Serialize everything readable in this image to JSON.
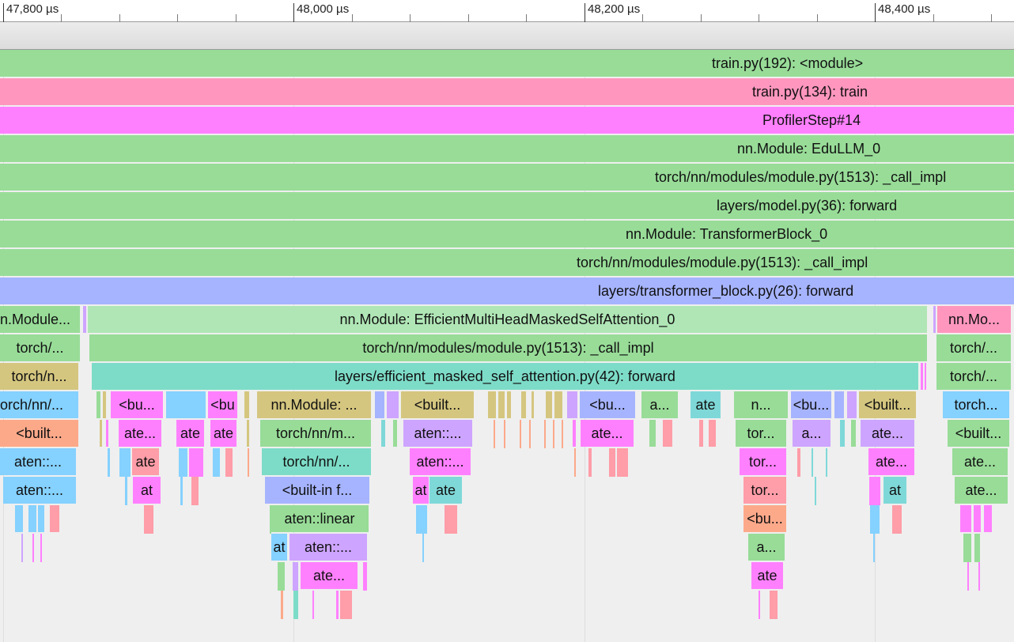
{
  "ruler": {
    "ticks": [
      {
        "label": "47,800 µs"
      },
      {
        "label": "48,000 µs"
      },
      {
        "label": "48,200 µs"
      },
      {
        "label": "48,400 µs"
      }
    ]
  },
  "rows": {
    "module": "train.py(192): <module>",
    "train": "train.py(134): train",
    "profiler_step": "ProfilerStep#14",
    "edullm": "nn.Module: EduLLM_0",
    "call_impl_1": "torch/nn/modules/module.py(1513): _call_impl",
    "model_forward": "layers/model.py(36): forward",
    "transformer_block": "nn.Module: TransformerBlock_0",
    "call_impl_2": "torch/nn/modules/module.py(1513): _call_impl",
    "transformer_forward": "layers/transformer_block.py(26): forward"
  },
  "attention": {
    "module": "nn.Module: EfficientMultiHeadMaskedSelfAttention_0",
    "call_impl": "torch/nn/modules/module.py(1513): _call_impl",
    "forward": "layers/efficient_masked_self_attention.py(42): forward"
  },
  "left_stack": [
    "n.Module...",
    "torch/...",
    "torch/n...",
    "orch/nn/...",
    "<built...",
    "aten::...",
    "aten::..."
  ],
  "right_stack": [
    "nn.Mo...",
    "torch/...",
    "torch/...",
    "torch...",
    "<built...",
    "ate...",
    "ate..."
  ],
  "labels": {
    "bu": "<bu...",
    "bu_short": "<bu",
    "ate_dots": "ate...",
    "ate": "ate",
    "at": "at",
    "nn_module": "nn.Module: ...",
    "torch_nn_m": "torch/nn/m...",
    "torch_nn": "torch/nn/...",
    "builtin_f": "<built-in f...",
    "aten_linear": "aten::linear",
    "aten_dots": "aten::...",
    "builtin": "<built...",
    "aten_colon": "aten::...",
    "a_dots": "a...",
    "n_dots": "n...",
    "tor": "tor...",
    "bu2": "<bu..."
  },
  "colors": {
    "green": "#98dc98",
    "pink": "#ff96be",
    "magenta": "#ff80ff",
    "lavender": "#a6b4ff",
    "light_green": "#b0e6b6",
    "teal": "#7ddcc8",
    "olive": "#d4c67f",
    "sky": "#85d1ff",
    "salmon": "#fca98a",
    "violet": "#cda4ff",
    "rose": "#ff9da8",
    "cyan": "#7fd8d8"
  }
}
